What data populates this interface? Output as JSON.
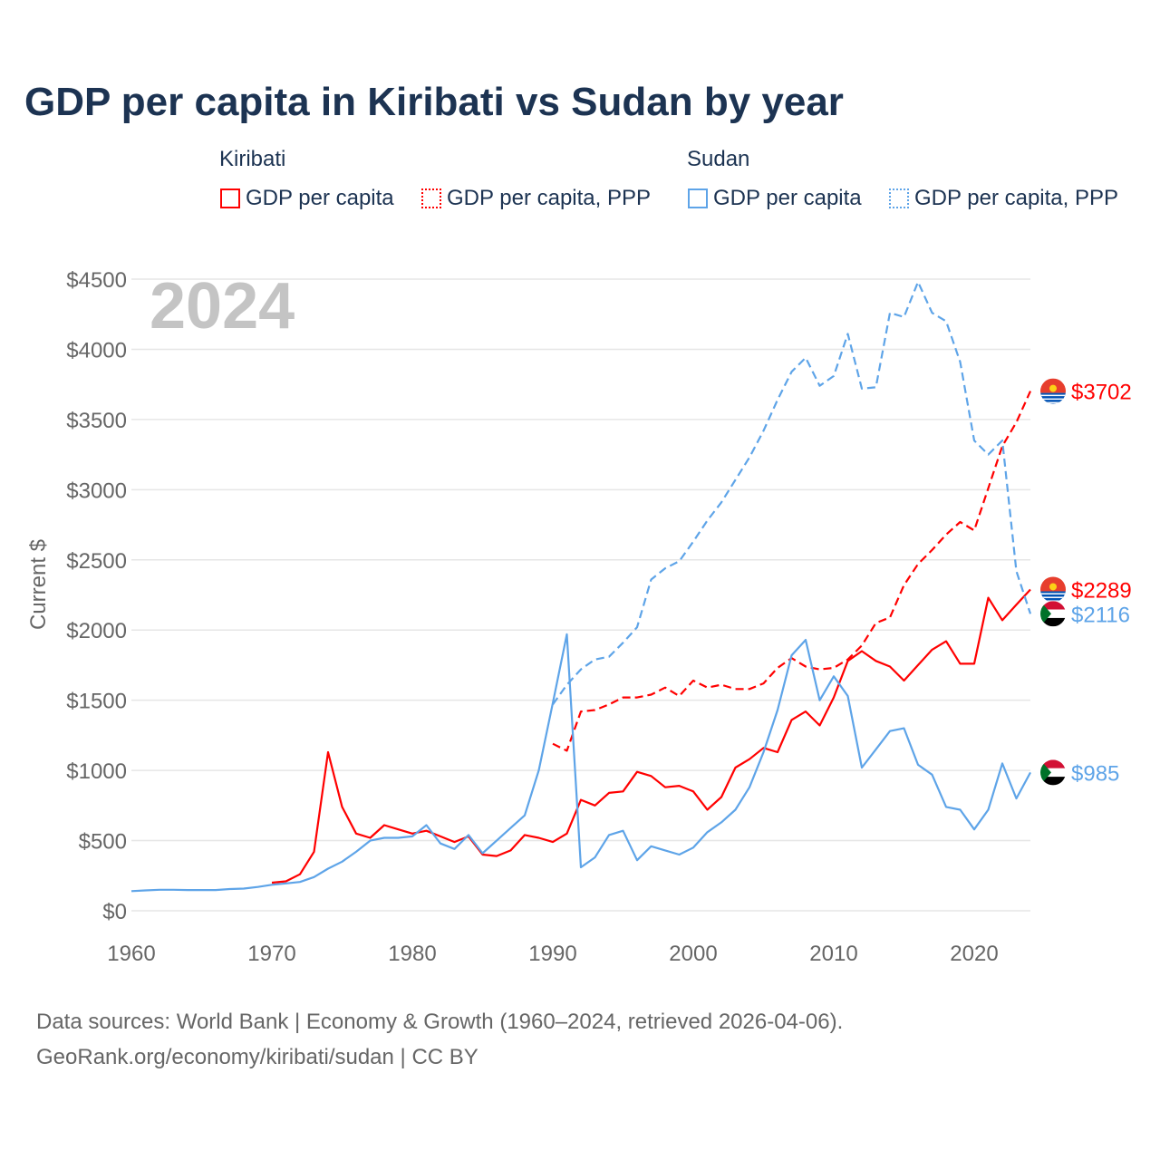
{
  "chart_data": {
    "type": "line",
    "title": "GDP per capita in Kiribati vs Sudan by year",
    "ylabel": "Current $",
    "xlabel": "",
    "year_watermark": "2024",
    "xlim": [
      1960,
      2024
    ],
    "ylim": [
      0,
      4500
    ],
    "x_ticks": [
      1960,
      1970,
      1980,
      1990,
      2000,
      2010,
      2020
    ],
    "x_tick_labels": [
      "1960",
      "1970",
      "1980",
      "1990",
      "2000",
      "2010",
      "2020"
    ],
    "y_ticks": [
      0,
      500,
      1000,
      1500,
      2000,
      2500,
      3000,
      3500,
      4000,
      4500
    ],
    "y_tick_labels": [
      "$0",
      "$500",
      "$1000",
      "$1500",
      "$2000",
      "$2500",
      "$3000",
      "$3500",
      "$4000",
      "$4500"
    ],
    "grid": true,
    "legend_placement": "top",
    "legend_groups": [
      "Kiribati",
      "Sudan"
    ],
    "series": [
      {
        "name": "Kiribati GDP per capita",
        "legend_label": "GDP per capita",
        "country": "Kiribati",
        "color": "#ff0000",
        "dash": false,
        "start": 1970,
        "values": [
          200,
          210,
          260,
          420,
          1130,
          740,
          550,
          520,
          610,
          580,
          550,
          570,
          530,
          490,
          530,
          400,
          390,
          430,
          540,
          520,
          490,
          550,
          790,
          750,
          840,
          850,
          990,
          960,
          880,
          890,
          850,
          720,
          810,
          1020,
          1080,
          1160,
          1130,
          1360,
          1420,
          1320,
          1520,
          1780,
          1850,
          1780,
          1740,
          1640,
          1750,
          1860,
          1920,
          1760,
          1760,
          2230,
          2070,
          2180,
          2289
        ],
        "end_label": "$2289"
      },
      {
        "name": "Kiribati GDP per capita, PPP",
        "legend_label": "GDP per capita, PPP",
        "country": "Kiribati",
        "color": "#ff0000",
        "dash": true,
        "start": 1990,
        "values": [
          1190,
          1140,
          1420,
          1430,
          1470,
          1520,
          1520,
          1540,
          1590,
          1530,
          1640,
          1590,
          1610,
          1580,
          1580,
          1620,
          1730,
          1800,
          1740,
          1720,
          1730,
          1790,
          1890,
          2050,
          2090,
          2320,
          2470,
          2570,
          2680,
          2770,
          2710,
          3010,
          3310,
          3480,
          3702
        ],
        "end_label": "$3702"
      },
      {
        "name": "Sudan GDP per capita",
        "legend_label": "GDP per capita",
        "country": "Sudan",
        "color": "#5ea4e8",
        "dash": false,
        "start": 1960,
        "values": [
          140,
          145,
          150,
          150,
          148,
          148,
          148,
          155,
          158,
          170,
          185,
          195,
          205,
          240,
          300,
          350,
          420,
          500,
          520,
          520,
          530,
          610,
          480,
          440,
          540,
          410,
          500,
          590,
          680,
          1000,
          1480,
          1970,
          310,
          380,
          540,
          570,
          360,
          460,
          430,
          400,
          450,
          560,
          630,
          720,
          880,
          1130,
          1430,
          1820,
          1930,
          1500,
          1670,
          1530,
          1020,
          1150,
          1280,
          1300,
          1040,
          970,
          740,
          720,
          580,
          720,
          1050,
          800,
          985
        ],
        "end_label": "$985"
      },
      {
        "name": "Sudan GDP per capita, PPP",
        "legend_label": "GDP per capita, PPP",
        "country": "Sudan",
        "color": "#5ea4e8",
        "dash": true,
        "start": 1990,
        "values": [
          1470,
          1610,
          1720,
          1790,
          1810,
          1910,
          2020,
          2360,
          2440,
          2490,
          2630,
          2780,
          2910,
          3070,
          3230,
          3420,
          3640,
          3840,
          3940,
          3740,
          3810,
          4110,
          3720,
          3730,
          4260,
          4230,
          4480,
          4260,
          4200,
          3910,
          3350,
          3250,
          3350,
          2420,
          2116
        ],
        "end_label": "$2116"
      }
    ]
  },
  "source_line1": "Data sources: World Bank | Economy & Growth (1960–2024, retrieved 2026-04-06).",
  "source_line2": "GeoRank.org/economy/kiribati/sudan | CC BY"
}
